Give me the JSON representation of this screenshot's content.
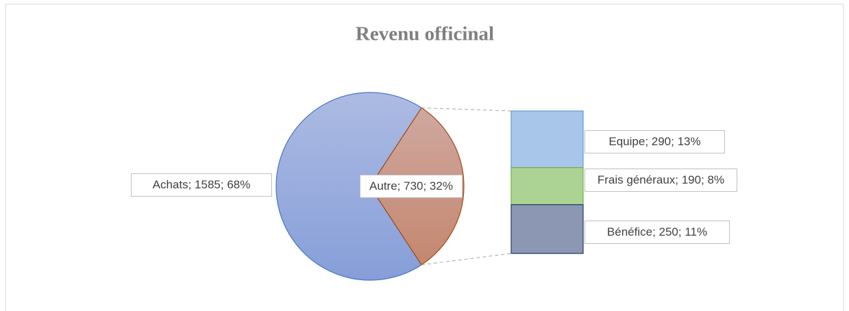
{
  "chart_data": {
    "type": "bar_of_pie",
    "title": "Revenu officinal",
    "pie": {
      "categories": [
        "Achats",
        "Autre"
      ],
      "values": [
        1585,
        730
      ],
      "value_labels": [
        "Achats; 1585; 68%",
        "Autre; 730; 32%"
      ],
      "colors": [
        "#98abdd",
        "#c99a8c"
      ],
      "strokes": [
        "#4472c4",
        "#a0490f"
      ]
    },
    "bar": {
      "categories": [
        "Equipe",
        "Frais généraux",
        "Bénéfice"
      ],
      "values": [
        290,
        190,
        250
      ],
      "value_labels": [
        "Equipe; 290; 13%",
        "Frais généraux; 190; 8%",
        "Bénéfice; 250; 11%"
      ],
      "colors": [
        "#a7c6ea",
        "#acd394",
        "#8b97b3"
      ],
      "strokes": [
        "#5b9bd5",
        "#70ad47",
        "#203864"
      ]
    }
  }
}
